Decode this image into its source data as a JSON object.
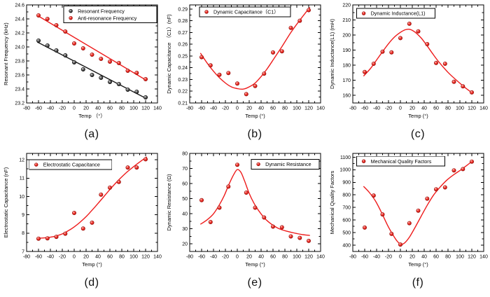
{
  "page": {
    "background": "#ffffff",
    "accent_red": "#ee1b1b",
    "accent_black": "#1c1c1c"
  },
  "chart_data": [
    {
      "panel_label": "(a)",
      "type": "scatter",
      "xlabel": "Temp （°）",
      "ylabel": "Resonant Frequency (kHz)",
      "xlim": [
        -80,
        140
      ],
      "xticks": [
        -80,
        -60,
        -40,
        -20,
        0,
        20,
        40,
        60,
        80,
        100,
        120,
        140
      ],
      "x_minor_step": 10,
      "ylim": [
        23.2,
        24.6
      ],
      "yticks": [
        23.2,
        23.4,
        23.6,
        23.8,
        24.0,
        24.2,
        24.4,
        24.6
      ],
      "ytick_decimals": 1,
      "grid": false,
      "legend": {
        "anchor": "right",
        "fx": 0.995,
        "fy": 0.012,
        "w": 133
      },
      "series": [
        {
          "name": "Resonant Frequency",
          "marker": "dark",
          "line_color": "#1c1c1c",
          "x": [
            -60,
            -45,
            -30,
            -15,
            0,
            15,
            30,
            45,
            60,
            75,
            90,
            105,
            120
          ],
          "y": [
            24.09,
            24.02,
            23.95,
            23.88,
            23.78,
            23.68,
            23.6,
            23.56,
            23.5,
            23.47,
            23.39,
            23.36,
            23.28
          ],
          "fit": {
            "type": "line",
            "anchors": [
              [
                -62,
                24.07
              ],
              [
                122,
                23.26
              ]
            ]
          }
        },
        {
          "name": "Anti-resonance Frequency",
          "marker": "red",
          "line_color": "#ee1b1b",
          "x": [
            -60,
            -45,
            -30,
            -15,
            0,
            15,
            30,
            45,
            60,
            75,
            90,
            105,
            120
          ],
          "y": [
            24.45,
            24.4,
            24.31,
            24.22,
            24.05,
            23.98,
            23.89,
            23.83,
            23.79,
            23.77,
            23.66,
            23.63,
            23.54
          ],
          "fit": {
            "type": "line",
            "anchors": [
              [
                -62,
                24.45
              ],
              [
                122,
                23.52
              ]
            ]
          }
        }
      ]
    },
    {
      "panel_label": "(b)",
      "type": "scatter",
      "xlabel": "Temp (°)",
      "ylabel": "Dynamic Capacitance （C1）(nF)",
      "xlim": [
        -80,
        140
      ],
      "xticks": [
        -80,
        -60,
        -40,
        -20,
        0,
        20,
        40,
        60,
        80,
        100,
        120,
        140
      ],
      "x_minor_step": 10,
      "ylim": [
        0.21,
        0.2935
      ],
      "yticks": [
        0.21,
        0.22,
        0.23,
        0.24,
        0.25,
        0.26,
        0.27,
        0.28,
        0.29
      ],
      "ytick_decimals": 2,
      "grid": false,
      "legend": {
        "anchor": "left",
        "fx": 0.075,
        "fy": 0.021,
        "w": 130
      },
      "series": [
        {
          "name": "Dynamic Capacitance（C1）",
          "marker": "red",
          "line_color": "#ee1b1b",
          "x": [
            -60,
            -45,
            -30,
            -15,
            0,
            15,
            30,
            45,
            60,
            75,
            90,
            105,
            120
          ],
          "y": [
            0.249,
            0.242,
            0.234,
            0.2355,
            0.2265,
            0.2175,
            0.2245,
            0.235,
            0.253,
            0.254,
            0.274,
            0.28,
            0.289
          ],
          "fit": {
            "type": "curve",
            "anchors": [
              [
                -62,
                0.2525
              ],
              [
                -50,
                0.2435
              ],
              [
                -40,
                0.237
              ],
              [
                -30,
                0.2315
              ],
              [
                -20,
                0.227
              ],
              [
                -10,
                0.2237
              ],
              [
                0,
                0.2222
              ],
              [
                10,
                0.2218
              ],
              [
                20,
                0.2237
              ],
              [
                30,
                0.227
              ],
              [
                40,
                0.2325
              ],
              [
                50,
                0.239
              ],
              [
                60,
                0.2465
              ],
              [
                75,
                0.258
              ],
              [
                90,
                0.27
              ],
              [
                105,
                0.2805
              ],
              [
                122,
                0.2915
              ]
            ]
          }
        }
      ]
    },
    {
      "panel_label": "(c)",
      "type": "scatter",
      "xlabel": "Temp (°)",
      "ylabel": "Dynamic Inductance(L1) (mH)",
      "xlim": [
        -80,
        140
      ],
      "xticks": [
        -80,
        -60,
        -40,
        -20,
        0,
        20,
        40,
        60,
        80,
        100,
        120,
        140
      ],
      "x_minor_step": 10,
      "ylim": [
        155,
        220
      ],
      "yticks": [
        160,
        170,
        180,
        190,
        200,
        210,
        220
      ],
      "ytick_decimals": 0,
      "grid": false,
      "legend": {
        "anchor": "left",
        "fx": 0.03,
        "fy": 0.036,
        "w": 112
      },
      "series": [
        {
          "name": "Dynamic Inductance(L1)",
          "marker": "red",
          "line_color": "#ee1b1b",
          "x": [
            -60,
            -45,
            -30,
            -15,
            0,
            15,
            30,
            45,
            60,
            75,
            90,
            105,
            120
          ],
          "y": [
            175.5,
            181,
            189,
            188.5,
            198,
            207.5,
            202.5,
            194,
            181.5,
            181,
            169,
            166,
            162
          ],
          "fit": {
            "type": "curve",
            "anchors": [
              [
                -62,
                172.8
              ],
              [
                -50,
                178
              ],
              [
                -40,
                183.5
              ],
              [
                -30,
                189
              ],
              [
                -20,
                194.3
              ],
              [
                -10,
                198.7
              ],
              [
                0,
                201.8
              ],
              [
                8,
                203.5
              ],
              [
                16,
                203.8
              ],
              [
                25,
                201.8
              ],
              [
                35,
                198
              ],
              [
                45,
                192.8
              ],
              [
                55,
                187.2
              ],
              [
                65,
                182
              ],
              [
                80,
                175.3
              ],
              [
                95,
                169.8
              ],
              [
                110,
                164.8
              ],
              [
                122,
                161.3
              ]
            ]
          }
        }
      ]
    },
    {
      "panel_label": "(d)",
      "type": "scatter",
      "xlabel": "Temp (°)",
      "ylabel": "Electrostatic Capacitance (nF)",
      "xlim": [
        -80,
        140
      ],
      "xticks": [
        -80,
        -60,
        -40,
        -20,
        0,
        20,
        40,
        60,
        80,
        100,
        120,
        140
      ],
      "x_minor_step": 10,
      "ylim": [
        7,
        12.35
      ],
      "yticks": [
        7,
        8,
        9,
        10,
        11,
        12
      ],
      "ytick_decimals": 0,
      "grid": false,
      "legend": {
        "anchor": "left",
        "fx": 0.02,
        "fy": 0.065,
        "w": 118
      },
      "series": [
        {
          "name": "Electrostatic Capacitance",
          "marker": "red",
          "line_color": "#ee1b1b",
          "x": [
            -60,
            -45,
            -30,
            -15,
            0,
            15,
            30,
            45,
            60,
            75,
            90,
            105,
            120
          ],
          "y": [
            7.7,
            7.72,
            7.8,
            7.97,
            9.1,
            8.25,
            8.57,
            10.1,
            10.48,
            10.79,
            11.58,
            11.58,
            12.03
          ],
          "fit": {
            "type": "curve",
            "anchors": [
              [
                -62,
                7.72
              ],
              [
                -50,
                7.74
              ],
              [
                -40,
                7.78
              ],
              [
                -30,
                7.85
              ],
              [
                -20,
                7.96
              ],
              [
                -10,
                8.13
              ],
              [
                0,
                8.34
              ],
              [
                10,
                8.6
              ],
              [
                20,
                8.9
              ],
              [
                30,
                9.25
              ],
              [
                40,
                9.62
              ],
              [
                50,
                10.0
              ],
              [
                60,
                10.38
              ],
              [
                70,
                10.74
              ],
              [
                80,
                11.07
              ],
              [
                90,
                11.37
              ],
              [
                100,
                11.63
              ],
              [
                110,
                11.88
              ],
              [
                122,
                12.16
              ]
            ]
          }
        }
      ]
    },
    {
      "panel_label": "(e)",
      "type": "scatter",
      "xlabel": "Temp (°)",
      "ylabel": "Dynamic Resistance (Ω)",
      "xlim": [
        -80,
        140
      ],
      "xticks": [
        -80,
        -60,
        -40,
        -20,
        0,
        20,
        40,
        60,
        80,
        100,
        120,
        140
      ],
      "x_minor_step": 10,
      "ylim": [
        15,
        80
      ],
      "yticks": [
        20,
        30,
        40,
        50,
        60,
        70,
        80
      ],
      "ytick_decimals": 0,
      "grid": false,
      "legend": {
        "anchor": "right",
        "fx": 0.99,
        "fy": 0.06,
        "w": 97
      },
      "series": [
        {
          "name": "Dynamic Resistance",
          "marker": "red",
          "line_color": "#ee1b1b",
          "x": [
            -60,
            -45,
            -30,
            -15,
            0,
            15,
            30,
            45,
            60,
            75,
            90,
            105,
            120
          ],
          "y": [
            49,
            34.5,
            44,
            58,
            72.5,
            54,
            44,
            37.5,
            31.5,
            31,
            25,
            24,
            22
          ],
          "fit": {
            "type": "curve",
            "anchors": [
              [
                -62,
                33
              ],
              [
                -50,
                36.2
              ],
              [
                -40,
                40
              ],
              [
                -30,
                46
              ],
              [
                -22,
                52
              ],
              [
                -14,
                59.5
              ],
              [
                -6,
                66
              ],
              [
                0,
                69.3
              ],
              [
                6,
                67.5
              ],
              [
                12,
                62
              ],
              [
                20,
                53.5
              ],
              [
                28,
                47
              ],
              [
                36,
                42
              ],
              [
                46,
                37
              ],
              [
                56,
                33.5
              ],
              [
                68,
                30.5
              ],
              [
                80,
                28.8
              ],
              [
                95,
                27.3
              ],
              [
                108,
                26.3
              ],
              [
                122,
                25.6
              ]
            ]
          }
        }
      ]
    },
    {
      "panel_label": "(f)",
      "type": "scatter",
      "xlabel": "Temp (°)",
      "ylabel": "Mechanical Quality Factors",
      "xlim": [
        -80,
        140
      ],
      "xticks": [
        -80,
        -60,
        -40,
        -20,
        0,
        20,
        40,
        60,
        80,
        100,
        120,
        140
      ],
      "x_minor_step": 10,
      "ylim": [
        350,
        1130
      ],
      "yticks": [
        400,
        500,
        600,
        700,
        800,
        900,
        1000,
        1100
      ],
      "ytick_decimals": 0,
      "grid": false,
      "legend": {
        "anchor": "left",
        "fx": 0.03,
        "fy": 0.03,
        "w": 126
      },
      "series": [
        {
          "name": "Mechanical Quality Factors",
          "marker": "red",
          "line_color": "#ee1b1b",
          "x": [
            -60,
            -45,
            -30,
            -15,
            0,
            15,
            30,
            45,
            60,
            75,
            90,
            105,
            120
          ],
          "y": [
            540,
            795,
            645,
            490,
            405,
            575,
            675,
            770,
            845,
            860,
            995,
            1005,
            1065
          ],
          "fit": {
            "type": "curve",
            "anchors": [
              [
                -62,
                868
              ],
              [
                -52,
                818
              ],
              [
                -42,
                752
              ],
              [
                -32,
                662
              ],
              [
                -22,
                562
              ],
              [
                -12,
                478
              ],
              [
                -4,
                424
              ],
              [
                2,
                407
              ],
              [
                8,
                422
              ],
              [
                16,
                470
              ],
              [
                26,
                553
              ],
              [
                36,
                640
              ],
              [
                46,
                725
              ],
              [
                56,
                800
              ],
              [
                66,
                858
              ],
              [
                78,
                917
              ],
              [
                90,
                962
              ],
              [
                102,
                1000
              ],
              [
                112,
                1036
              ],
              [
                122,
                1072
              ]
            ]
          }
        }
      ]
    }
  ]
}
